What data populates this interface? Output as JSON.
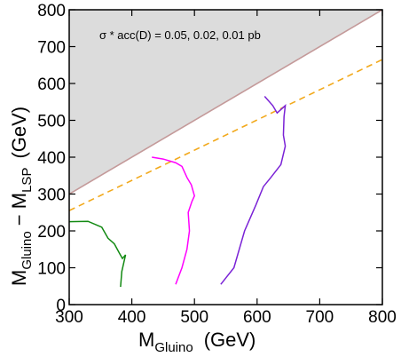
{
  "chart_data": {
    "type": "line",
    "annotation": "σ * acc(D) = 0.05,  0.02,  0.01 pb",
    "xlabel": {
      "main": "M",
      "sub": "Gluino",
      "unit": "(GeV)"
    },
    "ylabel": {
      "m1": "M",
      "s1": "Gluino",
      "mid": " − M",
      "s2": "LSP",
      "unit": "(GeV)"
    },
    "xlim": [
      300,
      800
    ],
    "ylim": [
      0,
      800
    ],
    "xticks": [
      300,
      400,
      500,
      600,
      700,
      800
    ],
    "yticks": [
      0,
      100,
      200,
      300,
      400,
      500,
      600,
      700,
      800
    ],
    "excluded_region": {
      "boundary": [
        [
          300,
          300
        ],
        [
          800,
          800
        ]
      ],
      "color": "#dcdcdc"
    },
    "diagonal_line": {
      "points": [
        [
          300,
          300
        ],
        [
          800,
          800
        ]
      ],
      "color": "#c49a9a"
    },
    "dashed_line": {
      "points": [
        [
          300,
          255
        ],
        [
          800,
          665
        ]
      ],
      "color": "#f2a91c"
    },
    "series": [
      {
        "color": "#138a13",
        "x": [
          300,
          330,
          352,
          362,
          372,
          380,
          385,
          390,
          384,
          382
        ],
        "y": [
          225,
          226,
          210,
          180,
          165,
          140,
          125,
          135,
          90,
          48
        ]
      },
      {
        "color": "#ff00ff",
        "x": [
          432,
          450,
          470,
          480,
          488,
          495,
          500,
          496,
          490,
          492,
          488,
          480,
          470
        ],
        "y": [
          400,
          395,
          385,
          375,
          345,
          325,
          295,
          280,
          250,
          200,
          150,
          100,
          55
        ]
      },
      {
        "color": "#7a22d6",
        "x": [
          612,
          625,
          632,
          645,
          643,
          642,
          645,
          638,
          622,
          610,
          598,
          580,
          563,
          542
        ],
        "y": [
          565,
          540,
          520,
          540,
          510,
          460,
          430,
          380,
          345,
          320,
          270,
          200,
          100,
          55
        ]
      }
    ]
  }
}
